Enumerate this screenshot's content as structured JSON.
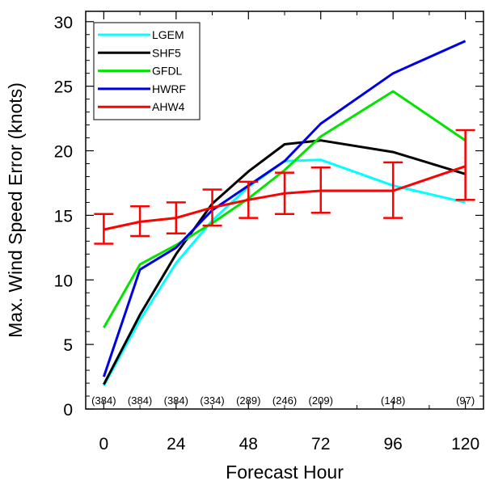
{
  "chart_data": {
    "type": "line",
    "xlabel": "Forecast Hour",
    "ylabel": "Max. Wind Speed Error (knots)",
    "xlim": [
      -6,
      126
    ],
    "ylim": [
      0,
      30.8
    ],
    "xticks": [
      0,
      24,
      48,
      72,
      96,
      120
    ],
    "yticks": [
      0,
      5,
      10,
      15,
      20,
      25,
      30
    ],
    "legend_position": "top-left",
    "grid": false,
    "series": [
      {
        "name": "LGEM",
        "color": "#00ffff",
        "x": [
          0,
          12,
          24,
          36,
          48,
          60,
          72,
          96,
          120
        ],
        "y": [
          1.8,
          6.9,
          11.3,
          14.6,
          17.2,
          19.2,
          19.3,
          17.3,
          16.0
        ]
      },
      {
        "name": "SHF5",
        "color": "#000000",
        "x": [
          0,
          12,
          24,
          36,
          48,
          60,
          72,
          96,
          120
        ],
        "y": [
          1.9,
          7.3,
          12.0,
          15.9,
          18.4,
          20.5,
          20.8,
          19.9,
          18.2
        ]
      },
      {
        "name": "GFDL",
        "color": "#00e400",
        "x": [
          0,
          12,
          24,
          36,
          48,
          60,
          72,
          96,
          120
        ],
        "y": [
          6.3,
          11.2,
          12.7,
          14.4,
          16.3,
          18.5,
          21.1,
          24.6,
          20.8
        ]
      },
      {
        "name": "HWRF",
        "color": "#0000e6",
        "x": [
          0,
          12,
          24,
          36,
          48,
          60,
          72,
          96,
          120
        ],
        "y": [
          2.5,
          10.8,
          12.5,
          15.4,
          17.3,
          19.2,
          22.1,
          26.0,
          28.5
        ]
      },
      {
        "name": "AHW4",
        "color": "#ff0000",
        "x": [
          0,
          12,
          24,
          36,
          48,
          60,
          72,
          96,
          120
        ],
        "y": [
          13.9,
          14.5,
          14.8,
          15.6,
          16.2,
          16.7,
          16.9,
          16.9,
          18.8
        ],
        "err_low": [
          12.8,
          13.4,
          13.6,
          14.2,
          14.8,
          15.1,
          15.2,
          14.8,
          16.2
        ],
        "err_high": [
          15.1,
          15.7,
          16.0,
          17.0,
          17.6,
          18.3,
          18.7,
          19.1,
          21.6
        ]
      }
    ],
    "sample_counts": [
      {
        "x": 0,
        "label": "(384)"
      },
      {
        "x": 12,
        "label": "(384)"
      },
      {
        "x": 24,
        "label": "(384)"
      },
      {
        "x": 36,
        "label": "(334)"
      },
      {
        "x": 48,
        "label": "(289)"
      },
      {
        "x": 60,
        "label": "(246)"
      },
      {
        "x": 72,
        "label": "(209)"
      },
      {
        "x": 96,
        "label": "(148)"
      },
      {
        "x": 120,
        "label": "(97)"
      }
    ]
  }
}
